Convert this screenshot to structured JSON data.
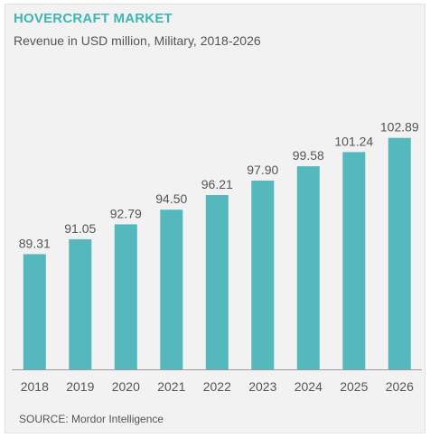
{
  "header": {
    "title": "HOVERCRAFT MARKET",
    "subtitle": "Revenue in USD million, Military, 2018-2026"
  },
  "footer": {
    "source": "SOURCE: Mordor Intelligence"
  },
  "colors": {
    "bar": "#55b8bd",
    "title": "#40b5b6",
    "text": "#555555",
    "axis": "#9a9a9a"
  },
  "chart_data": {
    "type": "bar",
    "title": "HOVERCRAFT MARKET",
    "subtitle": "Revenue in USD million, Military, 2018-2026",
    "categories": [
      "2018",
      "2019",
      "2020",
      "2021",
      "2022",
      "2023",
      "2024",
      "2025",
      "2026"
    ],
    "values": [
      89.31,
      91.05,
      92.79,
      94.5,
      96.21,
      97.9,
      99.58,
      101.24,
      102.89
    ],
    "value_labels": [
      "89.31",
      "91.05",
      "92.79",
      "94.50",
      "96.21",
      "97.90",
      "99.58",
      "101.24",
      "102.89"
    ],
    "xlabel": "",
    "ylabel": "",
    "grid": false,
    "legend": "none"
  }
}
